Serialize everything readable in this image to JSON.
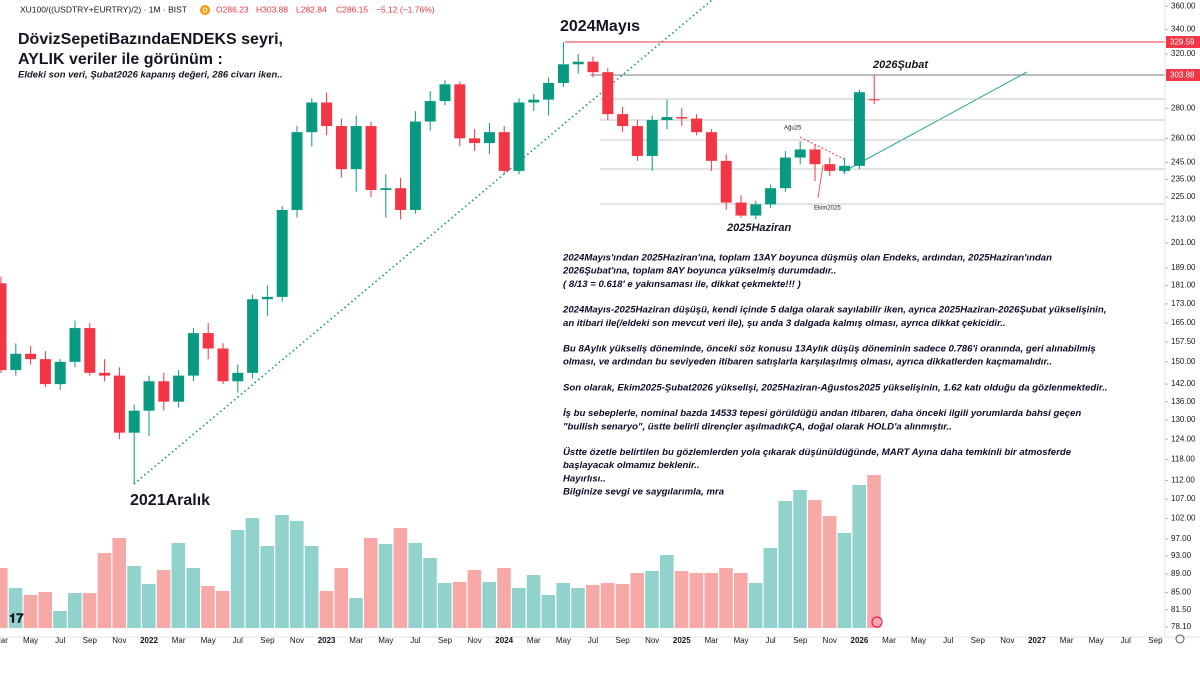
{
  "header": {
    "symbol": "XU100/((USDTRY+EURTRY)/2) · 1M · BIST",
    "badge": "D",
    "ohlc": [
      "O286.23",
      "H303.88",
      "L282.84",
      "C286.15",
      "−5.12 (−1.76%)"
    ]
  },
  "chart_data": {
    "type": "candlestick",
    "title": "DövizSepetiBazındaENDEKS seyri,",
    "subtitle": "AYLIK veriler ile görünüm :",
    "note": "Eldeki son veri, Şubat2026 kapanış değeri, 286 civarı iken..",
    "categories": [
      "Mar",
      null,
      "May",
      null,
      "Jul",
      null,
      "Sep",
      null,
      "Nov",
      null,
      "2022",
      null,
      "Mar",
      null,
      "May",
      null,
      "Jul",
      null,
      "Sep",
      null,
      "Nov",
      null,
      "2023",
      null,
      "Mar",
      null,
      "May",
      null,
      "Jul",
      null,
      "Sep",
      null,
      "Nov",
      null,
      "2024",
      null,
      "Mar",
      null,
      "May",
      null,
      "Jul",
      null,
      "Sep",
      null,
      "Nov",
      null,
      "2025",
      null,
      "Mar",
      null,
      "May",
      null,
      "Jul",
      null,
      "Sep",
      null,
      "Nov",
      null,
      "2026",
      null,
      "Mar",
      null,
      "May",
      null,
      "Jul",
      null,
      "Sep",
      null,
      "Nov",
      null,
      "2027",
      null,
      "Mar",
      null,
      "May",
      null,
      "Jul",
      null,
      "Sep"
    ],
    "open": [
      182,
      147,
      153,
      151,
      142,
      150,
      163,
      146,
      145,
      126,
      133,
      143,
      136,
      145,
      161,
      155,
      143,
      146,
      175,
      176,
      218,
      264,
      284,
      268,
      241,
      268,
      229,
      230,
      218,
      271,
      285,
      297,
      260,
      257,
      264,
      240,
      284,
      286,
      298,
      312,
      314,
      306,
      276,
      268,
      249,
      272,
      274,
      273,
      264,
      246,
      222,
      215,
      221,
      230,
      248,
      253,
      244,
      240,
      243,
      286.23,
      null,
      null,
      null,
      null,
      null,
      null,
      null,
      null,
      null,
      null,
      null,
      null,
      null,
      null,
      null,
      null,
      null,
      null,
      null
    ],
    "high": [
      185,
      157,
      156,
      154,
      151,
      166,
      165,
      151,
      148,
      135,
      145,
      146,
      147,
      163,
      165,
      157,
      149,
      177,
      181,
      220,
      268,
      287,
      291,
      273,
      275,
      271,
      238,
      236,
      278,
      292,
      300,
      299,
      266,
      270,
      268,
      287,
      290,
      302,
      329.59,
      320,
      318,
      309,
      281,
      272,
      275,
      286,
      280,
      276,
      266,
      250,
      226,
      223,
      232,
      252,
      258,
      256,
      248,
      248,
      293,
      303.88,
      null,
      null,
      null,
      null,
      null,
      null,
      null,
      null,
      null,
      null,
      null,
      null,
      null,
      null,
      null,
      null,
      null,
      null,
      null
    ],
    "low": [
      146,
      145,
      149,
      141,
      140,
      148,
      145,
      143,
      124,
      111,
      125,
      133,
      134,
      143,
      151,
      142,
      139,
      144,
      168,
      174,
      214,
      255,
      262,
      236,
      228,
      225,
      214,
      213,
      216,
      265,
      282,
      255,
      252,
      250,
      238,
      238,
      278,
      275,
      295,
      305,
      302,
      272,
      264,
      246,
      240,
      266,
      268,
      262,
      240,
      218,
      214,
      213,
      219,
      228,
      244,
      234,
      237,
      238,
      241,
      282.84,
      null,
      null,
      null,
      null,
      null,
      null,
      null,
      null,
      null,
      null,
      null,
      null,
      null,
      null,
      null,
      null,
      null,
      null,
      null
    ],
    "close": [
      147,
      153,
      151,
      142,
      150,
      163,
      146,
      145,
      126,
      133,
      143,
      136,
      145,
      161,
      155,
      143,
      146,
      175,
      176,
      218,
      264,
      284,
      268,
      241,
      268,
      229,
      230,
      218,
      271,
      285,
      297,
      260,
      257,
      264,
      240,
      284,
      286,
      298,
      312,
      314,
      306,
      276,
      268,
      249,
      272,
      274,
      273,
      264,
      246,
      222,
      215,
      221,
      230,
      248,
      253,
      244,
      240,
      243,
      291.27,
      286.15,
      null,
      null,
      null,
      null,
      null,
      null,
      null,
      null,
      null,
      null,
      null,
      null,
      null,
      null,
      null,
      null,
      null,
      null,
      null
    ],
    "volume": [
      60,
      40,
      33,
      36,
      17,
      35,
      35,
      75,
      90,
      62,
      44,
      58,
      85,
      60,
      42,
      37,
      98,
      110,
      82,
      113,
      107,
      82,
      37,
      60,
      30,
      90,
      84,
      100,
      85,
      70,
      45,
      46,
      58,
      46,
      60,
      40,
      53,
      33,
      45,
      40,
      43,
      45,
      44,
      55,
      57,
      73,
      57,
      55,
      55,
      60,
      55,
      45,
      80,
      127,
      138,
      128,
      112,
      95,
      143,
      153,
      null,
      null,
      null,
      null,
      null,
      null,
      null,
      null,
      null,
      null,
      null,
      null,
      null,
      null,
      null,
      null,
      null,
      null,
      null
    ],
    "up_color": "#089981",
    "down_color": "#f23645",
    "volume_up_color": "#92d2cc",
    "volume_down_color": "#f7a9a7",
    "ylim": [
      76.2,
      365.5
    ],
    "log_scale": true,
    "yticks": [
      {
        "value": 360,
        "label": "360.00"
      },
      {
        "value": 340,
        "label": "340.00"
      },
      {
        "value": 320,
        "label": "320.00"
      },
      {
        "value": 280,
        "label": "280.00"
      },
      {
        "value": 260,
        "label": "260.00"
      },
      {
        "value": 245,
        "label": "245.00"
      },
      {
        "value": 235,
        "label": "235.00"
      },
      {
        "value": 225,
        "label": "225.00"
      },
      {
        "value": 213,
        "label": "213.00"
      },
      {
        "value": 201,
        "label": "201.00"
      },
      {
        "value": 189,
        "label": "189.00"
      },
      {
        "value": 181,
        "label": "181.00"
      },
      {
        "value": 173,
        "label": "173.00"
      },
      {
        "value": 165,
        "label": "165.00"
      },
      {
        "value": 157.5,
        "label": "157.50"
      },
      {
        "value": 150,
        "label": "150.00"
      },
      {
        "value": 142,
        "label": "142.00"
      },
      {
        "value": 136,
        "label": "136.00"
      },
      {
        "value": 130,
        "label": "130.00"
      },
      {
        "value": 124,
        "label": "124.00"
      },
      {
        "value": 118,
        "label": "118.00"
      },
      {
        "value": 112,
        "label": "112.00"
      },
      {
        "value": 107,
        "label": "107.00"
      },
      {
        "value": 102,
        "label": "102.00"
      },
      {
        "value": 97,
        "label": "97.00"
      },
      {
        "value": 93,
        "label": "93.00"
      },
      {
        "value": 89,
        "label": "89.00"
      },
      {
        "value": 85,
        "label": "85.00"
      },
      {
        "value": 81.5,
        "label": "81.50"
      },
      {
        "value": 78.1,
        "label": "78.10"
      }
    ],
    "levels": [
      {
        "value": 329.59,
        "color": "#f23645"
      },
      {
        "value": 303.88,
        "color": "#787b86"
      }
    ],
    "annotations": [
      "2024Mayıs",
      "2026Şubat",
      "2025Haziran",
      "2021Aralık",
      "Ağu25",
      "Ekim2025"
    ],
    "commentary": [
      [
        "2024Mayıs'ından 2025Haziran'ına, toplam 13AY boyunca düşmüş olan Endeks, ardından, 2025Haziran'ından",
        "2026Şubat'ına, toplam 8AY boyunca yükselmiş durumdadır..",
        "( 8/13 = 0.618' e yakınsaması ile, dikkat çekmekte!!! )"
      ],
      [
        "2024Mayıs-2025Haziran düşüşü, kendi içinde 5 dalga olarak sayılabilir iken, ayrıca 2025Haziran-2026Şubat yükselişinin,",
        "an itibari ile(/eldeki son mevcut veri ile), şu anda 3 dalgada kalmış olması, ayrıca dikkat çekicidir.."
      ],
      [
        "Bu 8Aylık yükseliş döneminde, önceki söz konusu 13Aylık düşüş döneminin sadece 0.786'i oranında, geri alınabilmiş",
        "olması, ve ardından bu seviyeden itibaren satışlarla karşılaşılmış olması, ayrıca dikkatlerden kaçmamalıdır.."
      ],
      [
        "Son olarak, Ekim2025-Şubat2026 yükselişi, 2025Haziran-Ağustos2025 yükselişinin, 1.62 katı olduğu da gözlenmektedir.."
      ],
      [
        "İş bu sebeplerle, nominal bazda 14533 tepesi görüldüğü andan itibaren, daha önceki ilgili yorumlarda bahsi geçen",
        "\"bullish senaryo\", üstte belirli dirençler aşılmadıkÇA, doğal olarak HOLD'a alınmıştır.."
      ],
      [
        "Üstte özetle belirtilen bu gözlemlerden yola çıkarak düşünüldüğünde, MART Ayına daha temkinli bir atmosferde",
        "başlayacak olmamız beklenir..",
        "Hayırlısı..",
        "Bilginize sevgi ve saygılarımla, mra"
      ]
    ]
  }
}
